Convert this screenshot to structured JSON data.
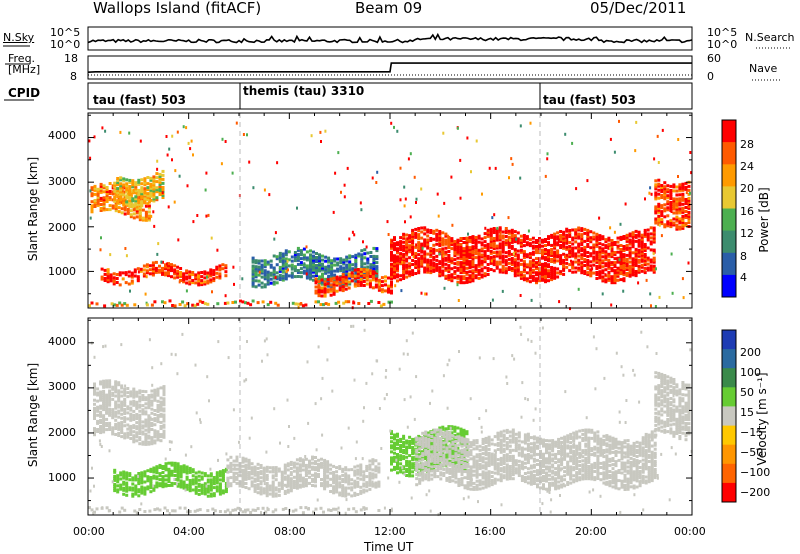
{
  "header": {
    "site": "Wallops Island (fitACF)",
    "beam": "Beam 09",
    "date": "05/Dec/2011"
  },
  "noise_panel": {
    "left_label": "N.Sky",
    "right_label": "N.Search",
    "left_ticks": [
      "10^5",
      "10^0"
    ],
    "right_ticks": [
      "10^5",
      "10^0"
    ]
  },
  "freq_panel": {
    "left_label_line1": "Freq.",
    "left_label_line2": "[MHz]",
    "right_label": "Nave",
    "left_ticks": [
      "18",
      "8"
    ],
    "right_ticks": [
      "60",
      "0"
    ]
  },
  "cpid_panel": {
    "label": "CPID",
    "programs": [
      {
        "name": "tau (fast) 503",
        "start_hour": 0
      },
      {
        "name": "themis (tau) 3310",
        "start_hour": 6
      },
      {
        "name": "tau (fast) 503",
        "start_hour": 18
      }
    ]
  },
  "power_panel": {
    "ylabel": "Slant Range [km]",
    "colorbar_label": "Power [dB]",
    "colorbar_ticks": [
      "28",
      "24",
      "20",
      "16",
      "12",
      "8",
      "4"
    ],
    "colors": [
      "#0000ff",
      "#2a5ea8",
      "#3c8c6e",
      "#4caf50",
      "#e8c832",
      "#ff9a00",
      "#ff5a00",
      "#ff0000"
    ]
  },
  "velocity_panel": {
    "ylabel": "Slant Range [km]",
    "colorbar_label": "Velocity [m s⁻¹]",
    "colorbar_ticks": [
      "200",
      "100",
      "50",
      "15",
      "−15",
      "−50",
      "−100",
      "−200"
    ],
    "colors": [
      "#1e3cb4",
      "#2a6aa0",
      "#3a8a4a",
      "#66cc33",
      "#c8c8c0",
      "#ffc800",
      "#ff9600",
      "#ff6400",
      "#ff0000"
    ]
  },
  "xaxis": {
    "label": "Time UT",
    "ticks": [
      "00:00",
      "04:00",
      "08:00",
      "12:00",
      "16:00",
      "20:00",
      "00:00"
    ]
  },
  "yaxis_ticks": [
    "4000",
    "3000",
    "2000",
    "1000"
  ],
  "chart_data": [
    {
      "type": "heatmap",
      "title": "Wallops Island (fitACF)",
      "xlabel": "Time UT",
      "ylabel": "Slant Range [km]",
      "colorbar": "Power [dB]",
      "xlim_hours": [
        0,
        24
      ],
      "ylim_km": [
        180,
        4550
      ],
      "clim_db": [
        0,
        30
      ],
      "bands": [
        {
          "t0": 0.1,
          "t1": 2.5,
          "r0": 2300,
          "r1": 2900,
          "val": 22
        },
        {
          "t0": 1.0,
          "t1": 3.0,
          "r0": 2600,
          "r1": 3200,
          "val": 18
        },
        {
          "t0": 0.5,
          "t1": 5.5,
          "r0": 850,
          "r1": 1150,
          "val": 26
        },
        {
          "t0": 6.5,
          "t1": 11.5,
          "r0": 800,
          "r1": 1450,
          "val": 8
        },
        {
          "t0": 9.0,
          "t1": 12.0,
          "r0": 600,
          "r1": 1000,
          "val": 26
        },
        {
          "t0": 12.0,
          "t1": 22.5,
          "r0": 900,
          "r1": 1900,
          "val": 28
        },
        {
          "t0": 22.5,
          "t1": 24.0,
          "r0": 2100,
          "r1": 3100,
          "val": 26
        }
      ]
    },
    {
      "type": "heatmap",
      "title": "Beam 09",
      "xlabel": "Time UT",
      "ylabel": "Slant Range [km]",
      "colorbar": "Velocity [m s⁻¹]",
      "xlim_hours": [
        0,
        24
      ],
      "ylim_km": [
        180,
        4550
      ],
      "clim_ms": [
        -200,
        200
      ],
      "bands": [
        {
          "t0": 0.2,
          "t1": 3.0,
          "r0": 1900,
          "r1": 3100,
          "val": 0
        },
        {
          "t0": 1.0,
          "t1": 5.5,
          "r0": 750,
          "r1": 1250,
          "val": 45
        },
        {
          "t0": 5.5,
          "t1": 11.5,
          "r0": 750,
          "r1": 1400,
          "val": 0
        },
        {
          "t0": 12.0,
          "t1": 15.0,
          "r0": 1200,
          "r1": 2100,
          "val": 40
        },
        {
          "t0": 13.0,
          "t1": 22.5,
          "r0": 900,
          "r1": 2000,
          "val": 0
        },
        {
          "t0": 22.5,
          "t1": 24.0,
          "r0": 2000,
          "r1": 3300,
          "val": 0
        }
      ]
    },
    {
      "type": "line",
      "title": "Freq. [MHz]",
      "x_hours": [
        0,
        0.3,
        12.0,
        12.05,
        24.0
      ],
      "y_mhz": [
        10.3,
        10.5,
        10.5,
        14.6,
        14.6
      ]
    }
  ]
}
